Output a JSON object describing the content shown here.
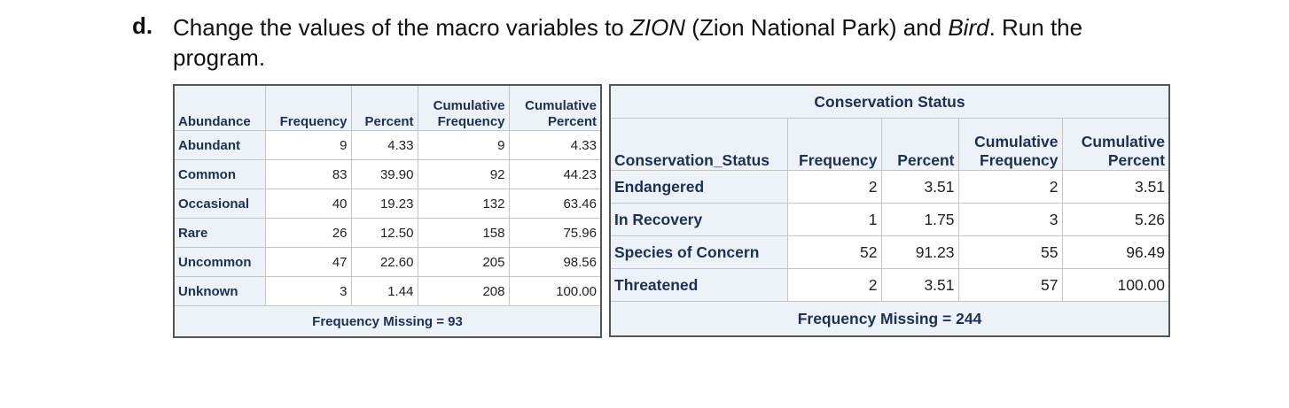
{
  "step": {
    "label": "d.",
    "text": [
      "Change the values of the macro variables to ",
      "ZION",
      " (Zion National Park) and ",
      "Bird",
      ". Run the program."
    ]
  },
  "table1": {
    "headers": [
      "Abundance",
      "Frequency",
      "Percent",
      "Cumulative Frequency",
      "Cumulative Percent"
    ],
    "rows": [
      [
        "Abundant",
        "9",
        "4.33",
        "9",
        "4.33"
      ],
      [
        "Common",
        "83",
        "39.90",
        "92",
        "44.23"
      ],
      [
        "Occasional",
        "40",
        "19.23",
        "132",
        "63.46"
      ],
      [
        "Rare",
        "26",
        "12.50",
        "158",
        "75.96"
      ],
      [
        "Uncommon",
        "47",
        "22.60",
        "205",
        "98.56"
      ],
      [
        "Unknown",
        "3",
        "1.44",
        "208",
        "100.00"
      ]
    ],
    "footer": "Frequency Missing = 93"
  },
  "table2": {
    "title": "Conservation Status",
    "headers": [
      "Conservation_Status",
      "Frequency",
      "Percent",
      "Cumulative Frequency",
      "Cumulative Percent"
    ],
    "rows": [
      [
        "Endangered",
        "2",
        "3.51",
        "2",
        "3.51"
      ],
      [
        "In Recovery",
        "1",
        "1.75",
        "3",
        "5.26"
      ],
      [
        "Species of Concern",
        "52",
        "91.23",
        "55",
        "96.49"
      ],
      [
        "Threatened",
        "2",
        "3.51",
        "57",
        "100.00"
      ]
    ],
    "footer": "Frequency Missing = 244"
  }
}
